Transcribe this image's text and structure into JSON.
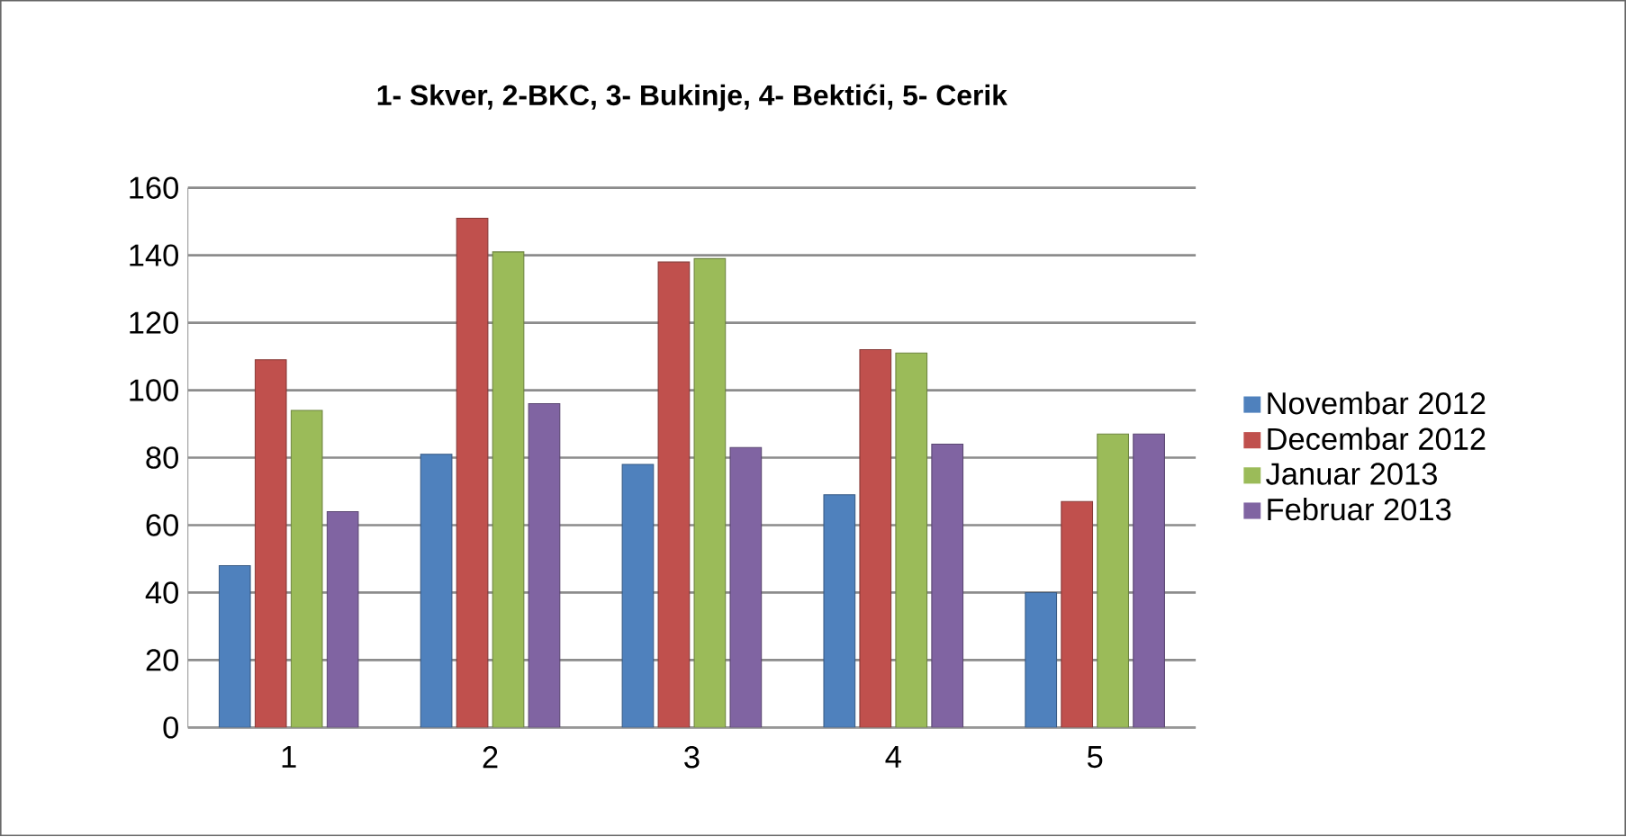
{
  "chart_data": {
    "type": "bar",
    "title": "1- Skver, 2-BKC, 3- Bukinje, 4- Bektići, 5- Cerik",
    "categories": [
      "1",
      "2",
      "3",
      "4",
      "5"
    ],
    "series": [
      {
        "name": "Novembar 2012",
        "color": "#4f81bd",
        "values": [
          48,
          81,
          78,
          69,
          40
        ]
      },
      {
        "name": "Decembar 2012",
        "color": "#c0504d",
        "values": [
          109,
          151,
          138,
          112,
          67
        ]
      },
      {
        "name": "Januar 2013",
        "color": "#9bbb59",
        "values": [
          94,
          141,
          139,
          111,
          87
        ]
      },
      {
        "name": "Februar 2013",
        "color": "#8064a2",
        "values": [
          64,
          96,
          83,
          84,
          87
        ]
      }
    ],
    "ylim": [
      0,
      160
    ],
    "yticks": [
      0,
      20,
      40,
      60,
      80,
      100,
      120,
      140,
      160
    ],
    "grid": "y",
    "legend": "right"
  }
}
